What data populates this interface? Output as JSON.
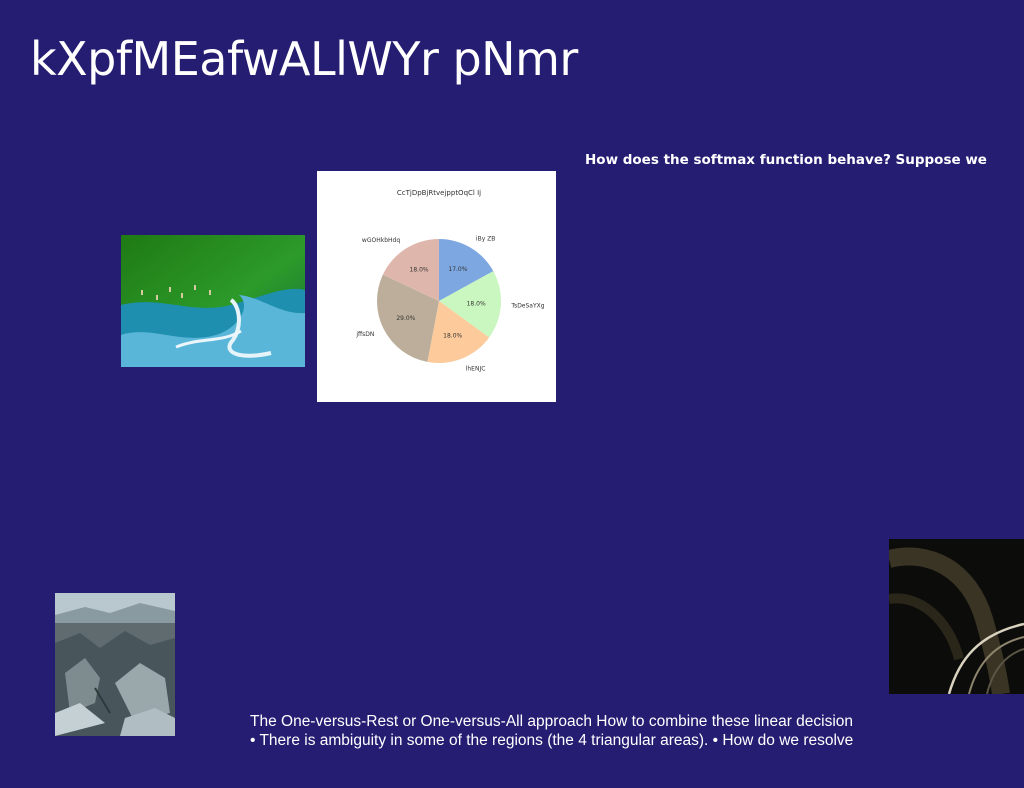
{
  "slide": {
    "title": "kXpfMEafwALlWYr pNmr",
    "question": "How does the softmax function behave? Suppose we",
    "caption_line1": "The One-versus-Rest or One-versus-All approach How to combine these linear decision",
    "caption_line2": "• There is ambiguity in some of the regions (the 4 triangular areas). • How do we resolve"
  },
  "images": {
    "aerial_coast": "aerial coastline photo",
    "rocky_landscape": "rocky landscape photo",
    "abstract_curves": "abstract curves photo"
  },
  "chart_data": {
    "type": "pie",
    "title": "CcTjDpBjRtvejpptOqCl Ij",
    "slices": [
      {
        "label": "iBy ZB",
        "value": 17.0,
        "pct_label": "17.0%",
        "color": "#7da7e0"
      },
      {
        "label": "TsDeSaYXg",
        "value": 18.0,
        "pct_label": "18.0%",
        "color": "#c9f7bf"
      },
      {
        "label": "lhENJC",
        "value": 18.0,
        "pct_label": "18.0%",
        "color": "#fdcb9b"
      },
      {
        "label": "jffsDN",
        "value": 29.0,
        "pct_label": "29.0%",
        "color": "#bcae9a"
      },
      {
        "label": "wGOHkbHdq",
        "value": 18.0,
        "pct_label": "18.0%",
        "color": "#dfb6ac"
      }
    ]
  }
}
